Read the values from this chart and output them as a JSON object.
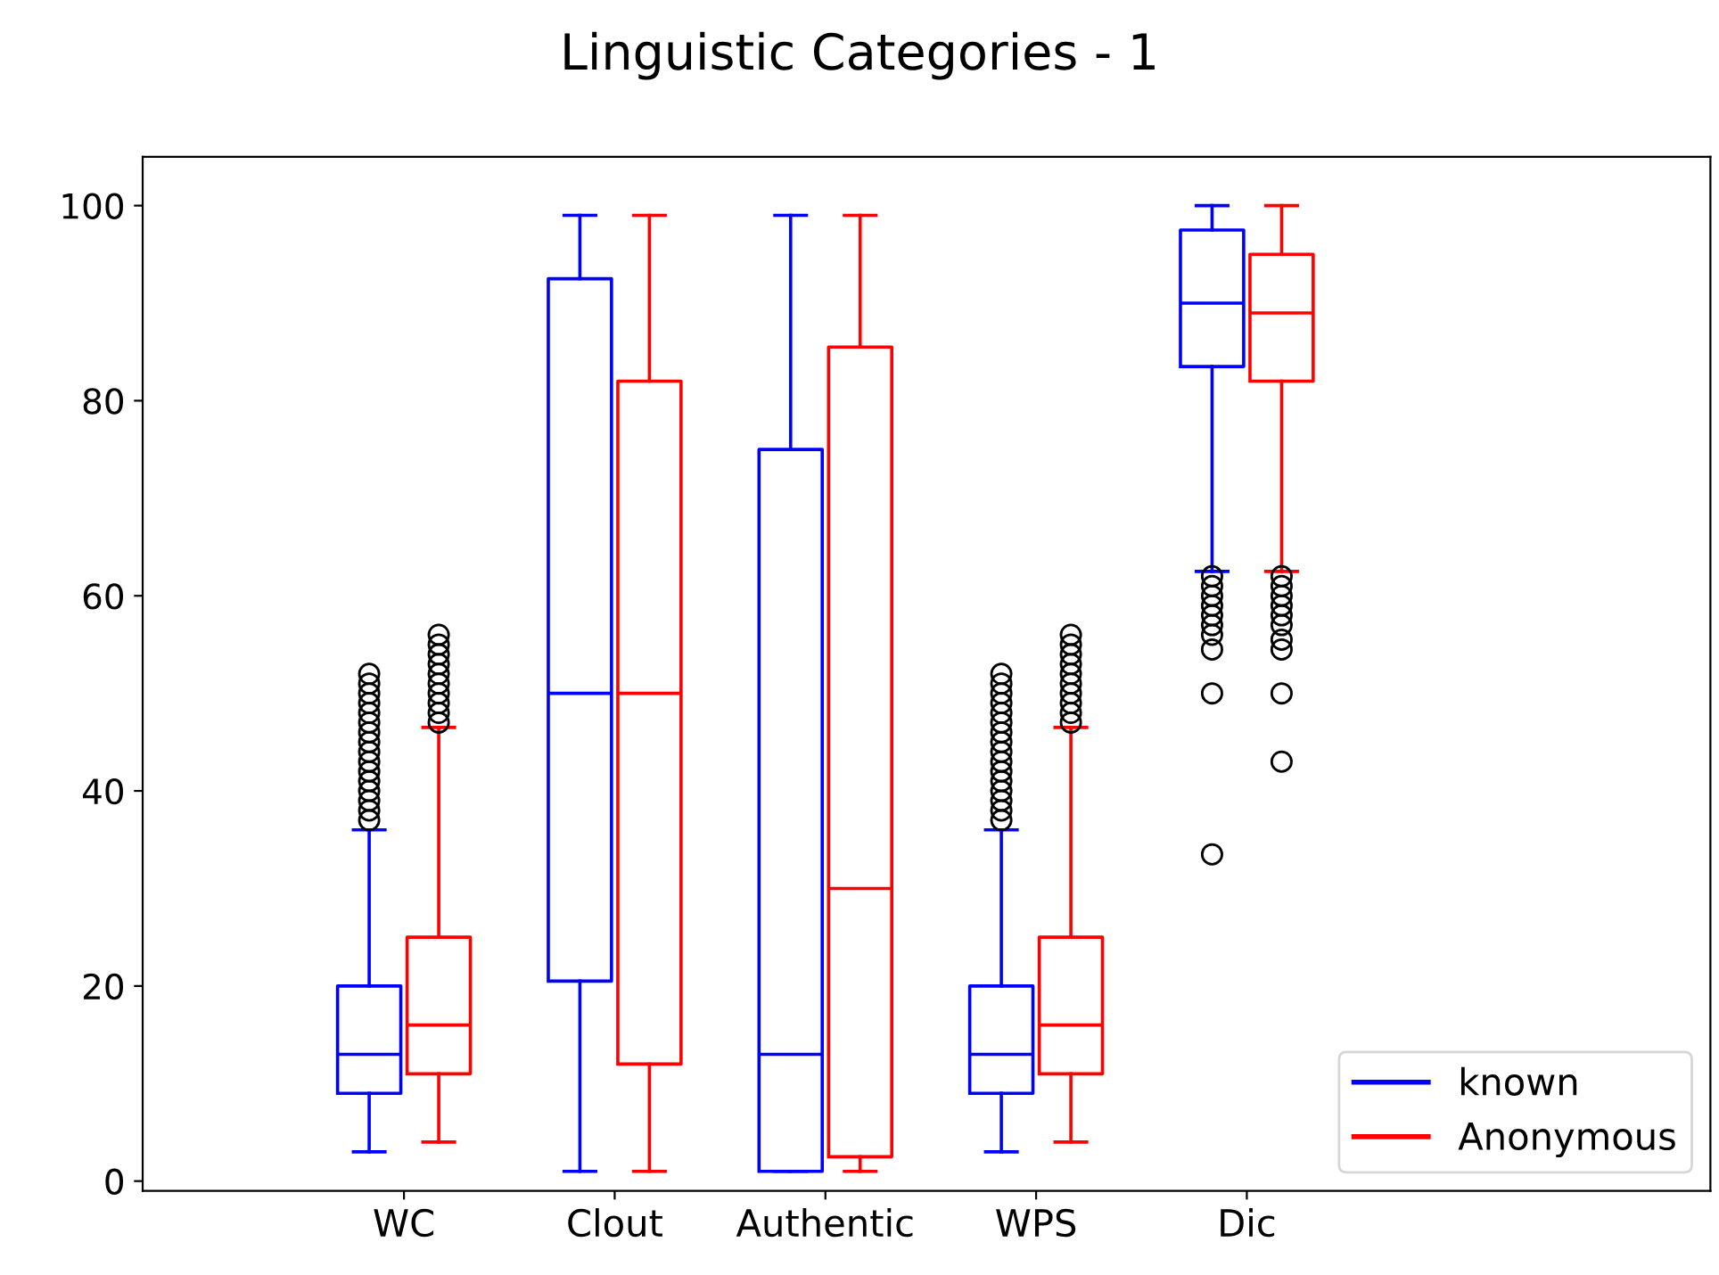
{
  "chart_data": {
    "type": "box",
    "title": "Linguistic Categories - 1",
    "categories": [
      "WC",
      "Clout",
      "Authentic",
      "WPS",
      "Dic"
    ],
    "series": [
      {
        "name": "known",
        "color": "#0000ff",
        "boxes": [
          {
            "low": 3,
            "q1": 9,
            "median": 13,
            "q3": 20,
            "high": 36,
            "outliers": [
              37,
              38,
              39,
              40,
              41,
              42,
              43,
              44,
              45,
              46,
              47,
              48,
              49,
              50,
              51,
              52
            ]
          },
          {
            "low": 1,
            "q1": 20.5,
            "median": 50,
            "q3": 92.5,
            "high": 99
          },
          {
            "low": 1,
            "q1": 1,
            "median": 13,
            "q3": 75,
            "high": 99
          },
          {
            "low": 3,
            "q1": 9,
            "median": 13,
            "q3": 20,
            "high": 36,
            "outliers": [
              37,
              38,
              39,
              40,
              41,
              42,
              43,
              44,
              45,
              46,
              47,
              48,
              49,
              50,
              51,
              52
            ]
          },
          {
            "low": 62.5,
            "q1": 83.5,
            "median": 90,
            "q3": 97.5,
            "high": 100,
            "outliers": [
              33.5,
              50,
              54.5,
              56,
              57,
              58,
              59,
              60,
              61,
              62
            ]
          }
        ]
      },
      {
        "name": "Anonymous",
        "color": "#ff0000",
        "boxes": [
          {
            "low": 4,
            "q1": 11,
            "median": 16,
            "q3": 25,
            "high": 46.5,
            "outliers": [
              47,
              48,
              49,
              50,
              51,
              52,
              53,
              54,
              55,
              56
            ]
          },
          {
            "low": 1,
            "q1": 12,
            "median": 50,
            "q3": 82,
            "high": 99
          },
          {
            "low": 1,
            "q1": 2.5,
            "median": 30,
            "q3": 85.5,
            "high": 99
          },
          {
            "low": 4,
            "q1": 11,
            "median": 16,
            "q3": 25,
            "high": 46.5,
            "outliers": [
              47,
              48,
              49,
              50,
              51,
              52,
              53,
              54,
              55,
              56
            ]
          },
          {
            "low": 62.5,
            "q1": 82,
            "median": 89,
            "q3": 95,
            "high": 100,
            "outliers": [
              43,
              50,
              54.5,
              55.5,
              57,
              58,
              59,
              60,
              61,
              62
            ]
          }
        ]
      }
    ],
    "ylim": [
      -1,
      105
    ],
    "yticks": [
      0,
      20,
      40,
      60,
      80,
      100
    ],
    "legend": "bottom right"
  }
}
